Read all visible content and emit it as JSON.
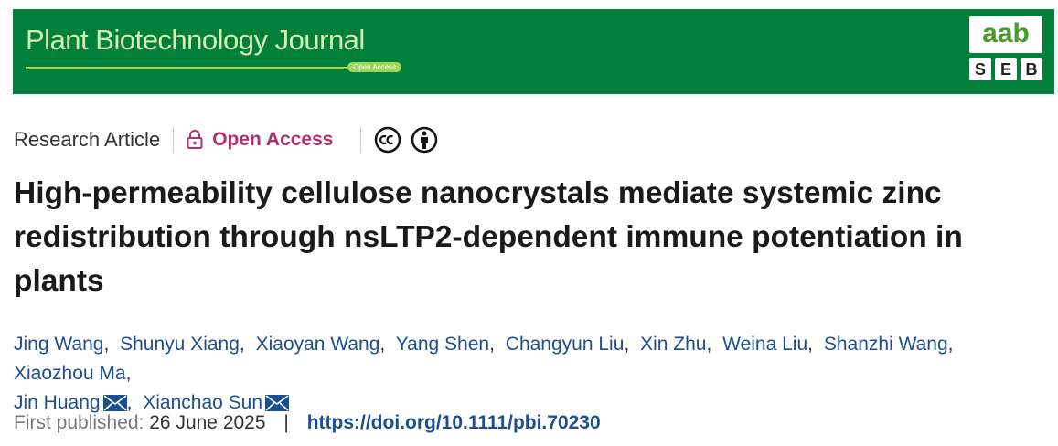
{
  "banner": {
    "journal_title": "Plant Biotechnology Journal",
    "open_access_badge": "Open Access",
    "logo_top": "aab",
    "logo_letters": [
      "S",
      "E",
      "B"
    ]
  },
  "article_type": "Research Article",
  "access": "Open Access",
  "title": "High-permeability cellulose nanocrystals mediate systemic zinc redistribution through nsLTP2-dependent immune potentiation in plants",
  "authors": [
    {
      "name": "Jing Wang"
    },
    {
      "name": "Shunyu Xiang"
    },
    {
      "name": "Xiaoyan Wang"
    },
    {
      "name": "Yang Shen"
    },
    {
      "name": "Changyun Liu"
    },
    {
      "name": "Xin Zhu"
    },
    {
      "name": "Weina Liu"
    },
    {
      "name": "Shanzhi Wang"
    },
    {
      "name": "Xiaozhou Ma"
    },
    {
      "name": "Jin Huang",
      "corresponding": true
    },
    {
      "name": "Xianchao Sun",
      "corresponding": true
    }
  ],
  "publication": {
    "label": "First published:",
    "date": "26 June 2025",
    "separator": "|",
    "doi": "https://doi.org/10.1111/pbi.70230"
  }
}
